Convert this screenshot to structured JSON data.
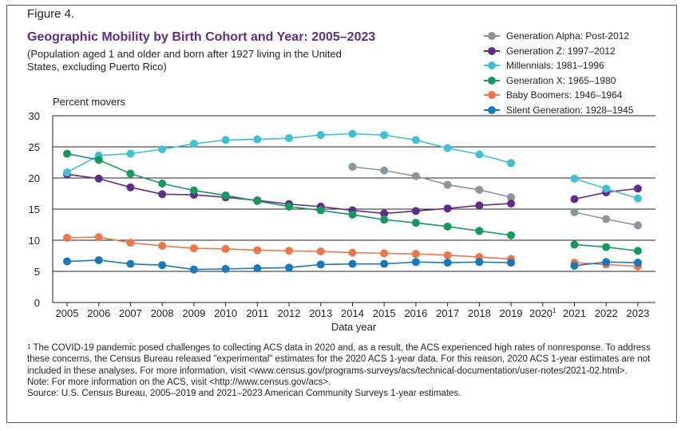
{
  "figure": {
    "label": "Figure 4.",
    "title": "Geographic Mobility by Birth Cohort and Year: 2005–2023",
    "subtitle": "(Population aged 1 and older and born after 1927 living in the United States, excluding Puerto Rico)"
  },
  "chart_data": {
    "type": "line",
    "ylabel": "Percent movers",
    "xlabel": "Data year",
    "ylim": [
      0,
      30
    ],
    "y_ticks": [
      "0",
      "5",
      "10",
      "15",
      "20",
      "25",
      "30"
    ],
    "x_years": [
      2005,
      2006,
      2007,
      2008,
      2009,
      2010,
      2011,
      2012,
      2013,
      2014,
      2015,
      2016,
      2017,
      2018,
      2019,
      2020,
      2021,
      2022,
      2023
    ],
    "x_tick_labels": [
      "2005",
      "2006",
      "2007",
      "2008",
      "2009",
      "2010",
      "2011",
      "2012",
      "2013",
      "2014",
      "2015",
      "2016",
      "2017",
      "2018",
      "2019",
      "2020",
      "2021",
      "2022",
      "2023"
    ],
    "footnote_marker": "1",
    "footnote_marker_year": "2020",
    "grid": true,
    "legend_position": "top-right",
    "series": [
      {
        "name": "Generation Alpha: Post-2012",
        "color": "#8c959b",
        "values": [
          null,
          null,
          null,
          null,
          null,
          null,
          null,
          null,
          null,
          21.8,
          21.2,
          20.3,
          18.9,
          18.1,
          16.9,
          null,
          14.5,
          13.4,
          12.4
        ]
      },
      {
        "name": "Generation Z: 1997–2012",
        "color": "#5c2d8a",
        "values": [
          20.6,
          19.9,
          18.5,
          17.4,
          17.3,
          16.9,
          16.4,
          15.8,
          15.4,
          14.8,
          14.3,
          14.7,
          15.1,
          15.6,
          15.9,
          null,
          16.6,
          17.7,
          18.3
        ]
      },
      {
        "name": "Millennials: 1981–1996",
        "color": "#3ec1d3",
        "values": [
          20.9,
          23.6,
          23.9,
          24.6,
          25.5,
          26.1,
          26.2,
          26.4,
          26.9,
          27.1,
          26.9,
          26.1,
          24.8,
          23.8,
          22.4,
          null,
          19.9,
          18.3,
          16.7
        ]
      },
      {
        "name": "Generation X: 1965–1980",
        "color": "#139b5d",
        "values": [
          23.9,
          22.9,
          20.7,
          19.1,
          18.0,
          17.2,
          16.3,
          15.4,
          14.8,
          14.1,
          13.3,
          12.8,
          12.2,
          11.5,
          10.8,
          null,
          9.3,
          8.9,
          8.3
        ]
      },
      {
        "name": "Baby Boomers: 1946–1964",
        "color": "#f07548",
        "values": [
          10.4,
          10.5,
          9.6,
          9.1,
          8.7,
          8.6,
          8.4,
          8.3,
          8.2,
          8.0,
          7.9,
          7.8,
          7.6,
          7.3,
          7.0,
          null,
          6.4,
          6.1,
          5.8
        ]
      },
      {
        "name": "Silent Generation: 1928–1945",
        "color": "#1779bd",
        "values": [
          6.6,
          6.8,
          6.2,
          6.0,
          5.3,
          5.4,
          5.5,
          5.6,
          6.1,
          6.2,
          6.2,
          6.5,
          6.4,
          6.5,
          6.4,
          null,
          5.9,
          6.5,
          6.4
        ]
      }
    ]
  },
  "footnotes": {
    "fn1_marker": "1",
    "fn1_text": " The COVID-19 pandemic posed challenges to collecting ACS data in 2020 and, as a result, the ACS experienced high rates of nonresponse. To address these concerns, the Census Bureau released \"experimental\" estimates for the 2020 ACS 1-year data. For this reason, 2020 ACS 1-year estimates are not included in these analyses. For more information, visit <www.census.gov/programs-surveys/acs/technical-documentation/user-notes/2021-02.html>.",
    "note": "Note: For more information on the ACS, visit <http://www.census.gov/acs>.",
    "source": "Source: U.S. Census Bureau, 2005–2019 and 2021–2023 American Community Surveys 1-year estimates."
  }
}
